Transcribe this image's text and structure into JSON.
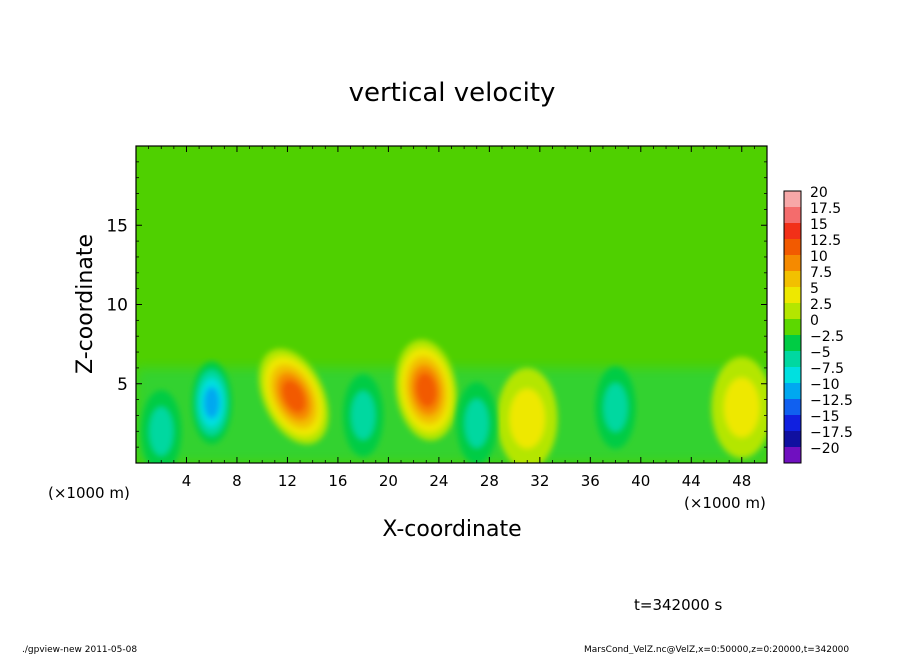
{
  "chart_data": {
    "type": "heatmap",
    "title": "vertical velocity",
    "xlabel": "X-coordinate",
    "ylabel": "Z-coordinate",
    "x_unit_left": "(×1000 m)",
    "x_unit_right": "(×1000 m)",
    "xlim": [
      0,
      50
    ],
    "ylim": [
      0,
      20
    ],
    "x_ticks": [
      4,
      8,
      12,
      16,
      20,
      24,
      28,
      32,
      36,
      40,
      44,
      48
    ],
    "y_ticks": [
      5,
      10,
      15
    ],
    "colorbar": {
      "labels": [
        "20",
        "17.5",
        "15",
        "12.5",
        "10",
        "7.5",
        "5",
        "2.5",
        "0",
        "−2.5",
        "−5",
        "−7.5",
        "−10",
        "−12.5",
        "−15",
        "−17.5",
        "−20"
      ],
      "colors": [
        "#f7a8a8",
        "#f46c6c",
        "#f23018",
        "#f25a00",
        "#f58a00",
        "#f2c000",
        "#eee800",
        "#b4e600",
        "#5cd800",
        "#00cc44",
        "#00d8a0",
        "#00e0e0",
        "#00a8f0",
        "#1060f0",
        "#1020e0",
        "#1010a0",
        "#7010c0"
      ]
    },
    "features": [
      {
        "kind": "updraft",
        "x": 12.5,
        "z": 4.2,
        "peak": 13
      },
      {
        "kind": "updraft",
        "x": 23,
        "z": 4.6,
        "peak": 12
      },
      {
        "kind": "updraft",
        "x": 31,
        "z": 2.8,
        "peak": 6
      },
      {
        "kind": "updraft",
        "x": 48,
        "z": 3.5,
        "peak": 5
      },
      {
        "kind": "downdraft",
        "x": 6,
        "z": 3.8,
        "peak": -9
      },
      {
        "kind": "downdraft",
        "x": 18,
        "z": 3.0,
        "peak": -6
      },
      {
        "kind": "downdraft",
        "x": 27,
        "z": 2.5,
        "peak": -4
      },
      {
        "kind": "downdraft",
        "x": 38,
        "z": 3.5,
        "peak": -4
      },
      {
        "kind": "downdraft",
        "x": 2,
        "z": 2.0,
        "peak": -3
      }
    ]
  },
  "annotations": {
    "time": "t=342000 s",
    "footer_left": "./gpview-new  2011-05-08",
    "footer_right": "MarsCond_VelZ.nc@VelZ,x=0:50000,z=0:20000,t=342000"
  }
}
